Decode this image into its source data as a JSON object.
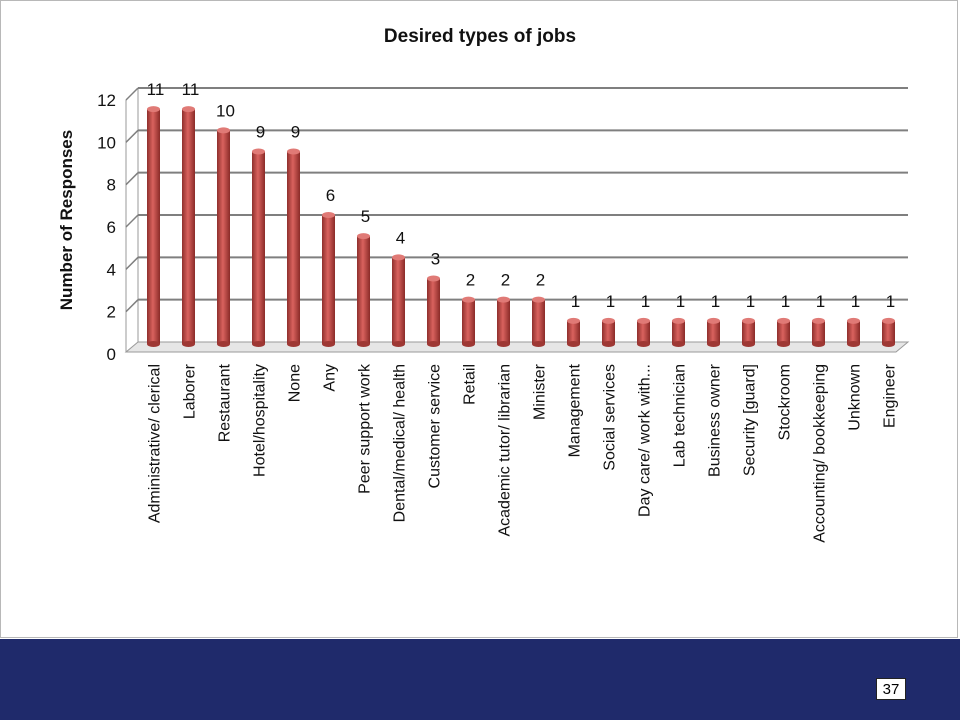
{
  "slide": {
    "page_number": "37",
    "footer_color": "#1f2a6b"
  },
  "chart_data": {
    "type": "bar",
    "title": "Desired types of jobs",
    "xlabel": "",
    "ylabel": "Number of Responses",
    "ylim": [
      0,
      12
    ],
    "yticks": [
      0,
      2,
      4,
      6,
      8,
      10,
      12
    ],
    "grid": true,
    "legend": "none",
    "bar_color": "#c0504d",
    "categories": [
      "Administrative/ clerical",
      "Laborer",
      "Restaurant",
      "Hotel/hospitality",
      "None",
      "Any",
      "Peer support work",
      "Dental/medical/ health",
      "Customer service",
      "Retail",
      "Academic tutor/ librarian",
      "Minister",
      "Management",
      "Social services",
      "Day care/ work with...",
      "Lab technician",
      "Business owner",
      "Security [guard]",
      "Stockroom",
      "Accounting/ bookkeeping",
      "Unknown",
      "Engineer"
    ],
    "values": [
      11,
      11,
      10,
      9,
      9,
      6,
      5,
      4,
      3,
      2,
      2,
      2,
      1,
      1,
      1,
      1,
      1,
      1,
      1,
      1,
      1,
      1
    ]
  }
}
